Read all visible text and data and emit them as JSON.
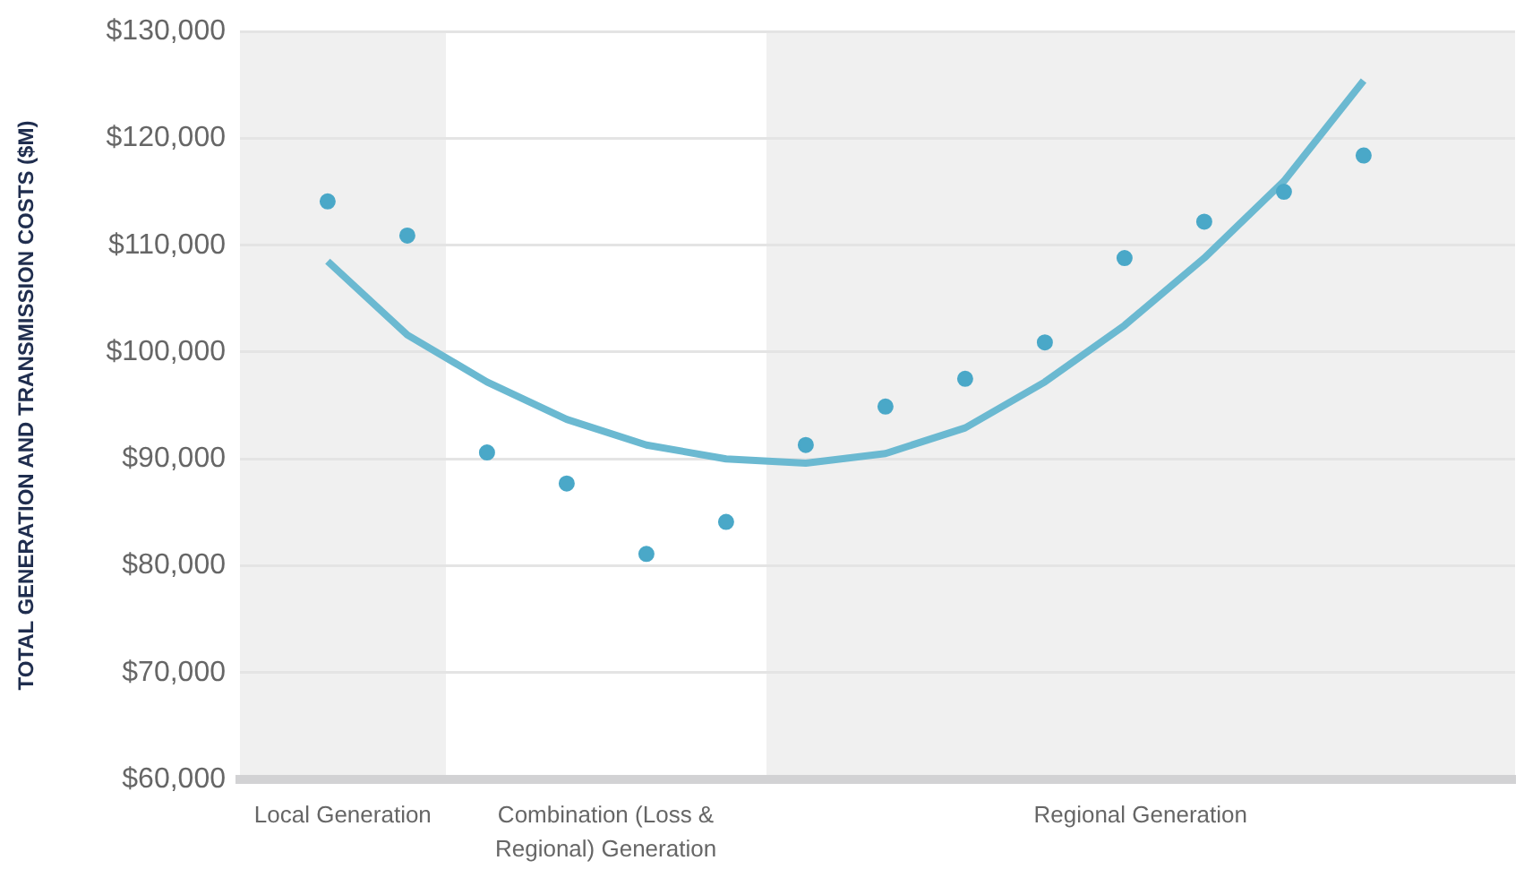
{
  "chart_data": {
    "type": "scatter",
    "ylabel": "TOTAL GENERATION AND TRANSMISSION COSTS ($M)",
    "categories": [
      null,
      null,
      null,
      null,
      null,
      null,
      null,
      null,
      null,
      null,
      null,
      null,
      null,
      null
    ],
    "ylim": [
      60000,
      130000
    ],
    "yticks": [
      {
        "value": 60000,
        "label": "$60,000"
      },
      {
        "value": 70000,
        "label": "$70,000"
      },
      {
        "value": 80000,
        "label": "$80,000"
      },
      {
        "value": 90000,
        "label": "$90,000"
      },
      {
        "value": 100000,
        "label": "$100,000"
      },
      {
        "value": 110000,
        "label": "$110,000"
      },
      {
        "value": 120000,
        "label": "$120,000"
      },
      {
        "value": 130000,
        "label": "$130,000"
      }
    ],
    "grid": "y",
    "legend": false,
    "marker": "circle",
    "series": [
      {
        "color": "#4aa8c8",
        "values": [
          114100,
          110900,
          90600,
          87700,
          81100,
          84100,
          91300,
          94900,
          97500,
          100900,
          108800,
          112200,
          115000,
          118400
        ]
      },
      {
        "type": "line",
        "color": "#6bb9d1",
        "line_style": "solid",
        "marker": "none",
        "values": [
          108500,
          101600,
          97200,
          93700,
          91300,
          90000,
          89600,
          90500,
          92900,
          97200,
          102500,
          108800,
          116000,
          125400
        ]
      }
    ],
    "annotations": [
      "Local Generation",
      "Combination (Loss & Regional) Generation",
      "Regional Generation"
    ]
  }
}
